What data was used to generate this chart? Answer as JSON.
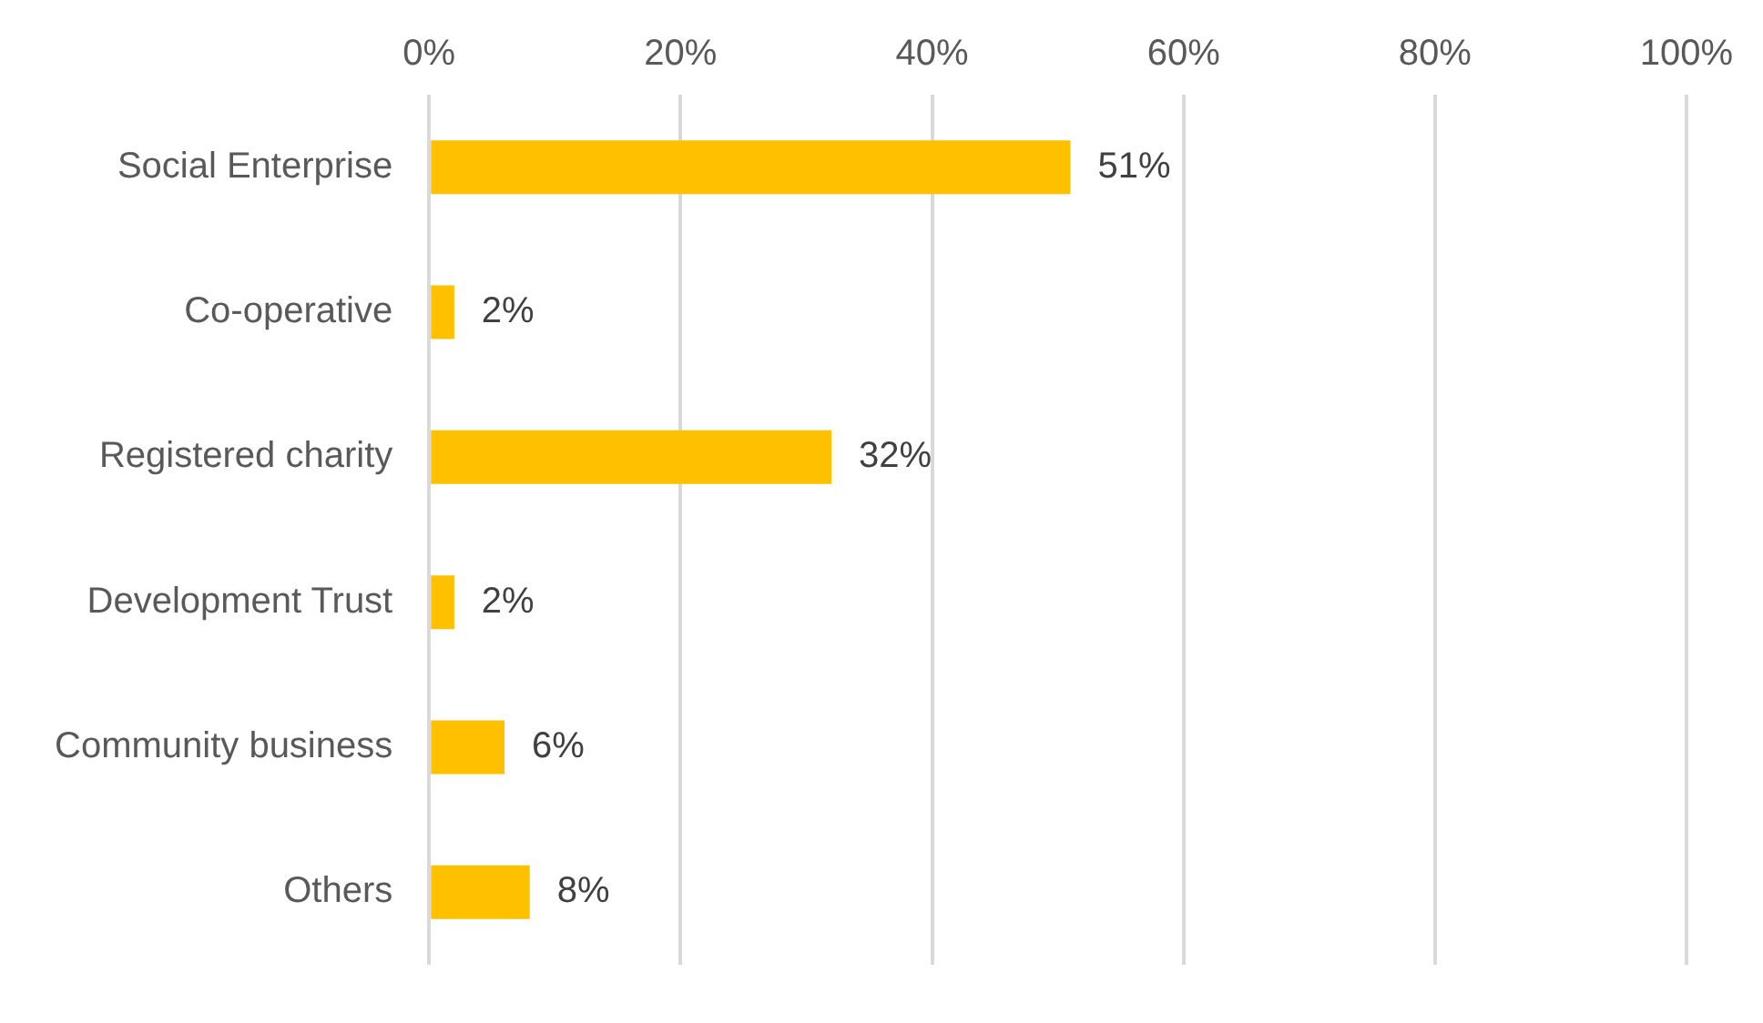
{
  "chart_data": {
    "type": "bar",
    "orientation": "horizontal",
    "categories": [
      "Social Enterprise",
      "Co-operative",
      "Registered charity",
      "Development Trust",
      "Community business",
      "Others"
    ],
    "values": [
      51,
      2,
      32,
      2,
      6,
      8
    ],
    "value_labels": [
      "51%",
      "2%",
      "32%",
      "2%",
      "6%",
      "8%"
    ],
    "color": "#ffc000",
    "xlim": [
      0,
      100
    ],
    "xticks": [
      {
        "value": 0,
        "label": "0%"
      },
      {
        "value": 20,
        "label": "20%"
      },
      {
        "value": 40,
        "label": "40%"
      },
      {
        "value": 60,
        "label": "60%"
      },
      {
        "value": 80,
        "label": "80%"
      },
      {
        "value": 100,
        "label": "100%"
      }
    ],
    "grid": "x"
  }
}
